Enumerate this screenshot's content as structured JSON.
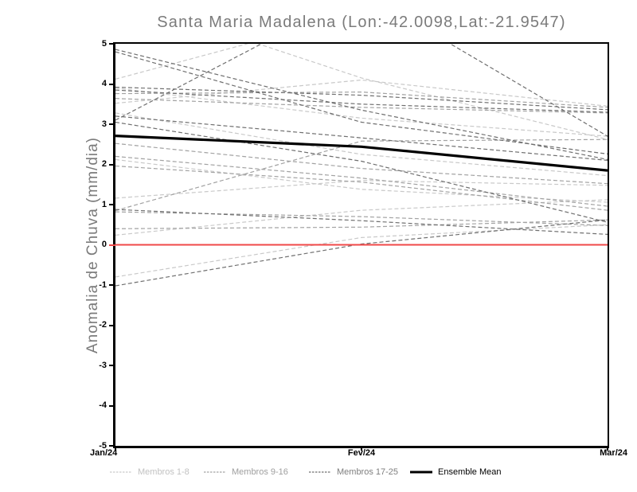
{
  "title": "Santa Maria Madalena (Lon:-42.0098,Lat:-21.9547)",
  "y_axis": {
    "label": "Anomalia de Chuva (mm/dia)",
    "ticks": [
      {
        "label": "5",
        "value": 5
      },
      {
        "label": "4",
        "value": 4
      },
      {
        "label": "3",
        "value": 3
      },
      {
        "label": "2",
        "value": 2
      },
      {
        "label": "1",
        "value": 1
      },
      {
        "label": "0",
        "value": 0
      },
      {
        "label": "-1",
        "value": -1
      },
      {
        "label": "-2",
        "value": -2
      },
      {
        "label": "-3",
        "value": -3
      },
      {
        "label": "-4",
        "value": -4
      },
      {
        "label": "-5",
        "value": -5
      }
    ]
  },
  "x_axis": {
    "ticks": [
      {
        "label": "Jan/24",
        "frac": 0,
        "align": "left"
      },
      {
        "label": "Fev/24",
        "frac": 0.5,
        "align": "center"
      },
      {
        "label": "Mar/24",
        "frac": 1,
        "align": "right"
      }
    ]
  },
  "legend": [
    {
      "label": "Membros 1-8",
      "color": "#c9c9c9",
      "text_color": "#c2c2c2",
      "style": "dashed",
      "x": 0
    },
    {
      "label": "Membros 9-16",
      "color": "#a2a2a2",
      "text_color": "#9e9e9e",
      "style": "dashed",
      "x": 118
    },
    {
      "label": "Membros 17-25",
      "color": "#6f6f6f",
      "text_color": "#7e7e7e",
      "style": "dashed",
      "x": 250
    },
    {
      "label": "Ensemble Mean",
      "color": "#000000",
      "text_color": "#000000",
      "style": "solid",
      "x": 377
    }
  ],
  "colors": {
    "zero_line": "#f04848",
    "ensemble_mean": "#000000",
    "members_1_8": "#c9c9c9",
    "members_9_16": "#a2a2a2",
    "members_17_25": "#6f6f6f",
    "title_text": "#7b7b7b",
    "axis_text": "#000000"
  },
  "chart_data": {
    "type": "line",
    "title": "Santa Maria Madalena (Lon:-42.0098,Lat:-21.9547)",
    "ylabel": "Anomalia de Chuva (mm/dia)",
    "ylim": [
      -5,
      5
    ],
    "x_ticks": [
      "Jan/24",
      "Fev/24",
      "Mar/24"
    ],
    "x_note": "x given as fraction of the Jan/24 - Mar/24 span; 0=Jan/24, 0.5=Fev/24, 1=Mar/24",
    "grid": false,
    "legend_position": "bottom",
    "zero_line": {
      "value": 0,
      "color": "#f04848"
    },
    "ensemble_mean": {
      "name": "Ensemble Mean",
      "color": "#000000",
      "points": [
        [
          0,
          2.71
        ],
        [
          0.5,
          2.44
        ],
        [
          1,
          1.85
        ]
      ]
    },
    "series": [
      {
        "name": "Membro 1",
        "group": "Membros 1-8",
        "color": "#c9c9c9",
        "points": [
          [
            0,
            4.12
          ],
          [
            0.28,
            5.04
          ],
          [
            0.5,
            4.15
          ],
          [
            1,
            2.62
          ]
        ]
      },
      {
        "name": "Membro 2",
        "group": "Membros 1-8",
        "color": "#c9c9c9",
        "points": [
          [
            0,
            3.52
          ],
          [
            0.5,
            4.1
          ],
          [
            1,
            3.45
          ]
        ]
      },
      {
        "name": "Membro 3",
        "group": "Membros 1-8",
        "color": "#c9c9c9",
        "points": [
          [
            0,
            3.9
          ],
          [
            0.5,
            3.15
          ],
          [
            1,
            2.7
          ]
        ]
      },
      {
        "name": "Membro 4",
        "group": "Membros 1-8",
        "color": "#c9c9c9",
        "points": [
          [
            0,
            3.28
          ],
          [
            0.5,
            2.25
          ],
          [
            1,
            1.72
          ]
        ]
      },
      {
        "name": "Membro 5",
        "group": "Membros 1-8",
        "color": "#c9c9c9",
        "points": [
          [
            0,
            2.12
          ],
          [
            0.5,
            1.38
          ],
          [
            1,
            1.06
          ]
        ]
      },
      {
        "name": "Membro 6",
        "group": "Membros 1-8",
        "color": "#c9c9c9",
        "points": [
          [
            0,
            1.16
          ],
          [
            0.5,
            1.6
          ],
          [
            1,
            1.48
          ]
        ]
      },
      {
        "name": "Membro 7",
        "group": "Membros 1-8",
        "color": "#c9c9c9",
        "points": [
          [
            0,
            0.24
          ],
          [
            0.5,
            0.86
          ],
          [
            1,
            1.12
          ]
        ]
      },
      {
        "name": "Membro 8",
        "group": "Membros 1-8",
        "color": "#c9c9c9",
        "points": [
          [
            0,
            -0.8
          ],
          [
            0.5,
            0.18
          ],
          [
            1,
            0.5
          ]
        ]
      },
      {
        "name": "Membro 9",
        "group": "Membros 9-16",
        "color": "#a2a2a2",
        "points": [
          [
            0,
            3.76
          ],
          [
            0.5,
            3.8
          ],
          [
            1,
            3.42
          ]
        ]
      },
      {
        "name": "Membro 10",
        "group": "Membros 9-16",
        "color": "#a2a2a2",
        "points": [
          [
            0,
            3.64
          ],
          [
            0.5,
            3.42
          ],
          [
            1,
            3.28
          ]
        ]
      },
      {
        "name": "Membro 11",
        "group": "Membros 9-16",
        "color": "#a2a2a2",
        "points": [
          [
            0,
            2.52
          ],
          [
            0.5,
            1.9
          ],
          [
            1,
            1.52
          ]
        ]
      },
      {
        "name": "Membro 12",
        "group": "Membros 9-16",
        "color": "#a2a2a2",
        "points": [
          [
            0,
            2.2
          ],
          [
            0.5,
            1.66
          ],
          [
            1,
            0.96
          ]
        ]
      },
      {
        "name": "Membro 13",
        "group": "Membros 9-16",
        "color": "#a2a2a2",
        "points": [
          [
            0,
            1.96
          ],
          [
            0.5,
            1.56
          ],
          [
            1,
            0.86
          ]
        ]
      },
      {
        "name": "Membro 14",
        "group": "Membros 9-16",
        "color": "#a2a2a2",
        "points": [
          [
            0,
            0.85
          ],
          [
            0.5,
            2.58
          ],
          [
            1,
            2.62
          ]
        ]
      },
      {
        "name": "Membro 15",
        "group": "Membros 9-16",
        "color": "#a2a2a2",
        "points": [
          [
            0,
            0.4
          ],
          [
            0.5,
            0.44
          ],
          [
            1,
            0.62
          ]
        ]
      },
      {
        "name": "Membro 16",
        "group": "Membros 9-16",
        "color": "#a2a2a2",
        "points": [
          [
            0,
            0.82
          ],
          [
            0.5,
            0.7
          ],
          [
            1,
            0.48
          ]
        ]
      },
      {
        "name": "Membro 17",
        "group": "Membros 17-25",
        "color": "#6f6f6f",
        "points": [
          [
            0,
            4.86
          ],
          [
            0.5,
            3.35
          ],
          [
            1,
            2.12
          ]
        ]
      },
      {
        "name": "Membro 18",
        "group": "Membros 17-25",
        "color": "#6f6f6f",
        "points": [
          [
            0,
            4.8
          ],
          [
            0.5,
            3.05
          ],
          [
            1,
            2.26
          ]
        ]
      },
      {
        "name": "Membro 19",
        "group": "Membros 17-25",
        "color": "#6f6f6f",
        "points": [
          [
            0,
            3.92
          ],
          [
            0.5,
            3.72
          ],
          [
            1,
            3.36
          ]
        ]
      },
      {
        "name": "Membro 20",
        "group": "Membros 17-25",
        "color": "#6f6f6f",
        "points": [
          [
            0,
            3.85
          ],
          [
            0.5,
            3.5
          ],
          [
            1,
            3.3
          ]
        ]
      },
      {
        "name": "Membro 21",
        "group": "Membros 17-25",
        "color": "#6f6f6f",
        "points": [
          [
            0,
            3.05
          ],
          [
            0.5,
            2.08
          ],
          [
            1,
            0.56
          ]
        ]
      },
      {
        "name": "Membro 22",
        "group": "Membros 17-25",
        "color": "#6f6f6f",
        "points": [
          [
            0,
            3.2
          ],
          [
            0.5,
            2.66
          ],
          [
            1,
            2.1
          ]
        ]
      },
      {
        "name": "Membro 23",
        "group": "Membros 17-25",
        "color": "#6f6f6f",
        "points": [
          [
            0,
            3.1
          ],
          [
            0.5,
            6.3
          ],
          [
            1,
            2.7
          ]
        ]
      },
      {
        "name": "Membro 24",
        "group": "Membros 17-25",
        "color": "#6f6f6f",
        "points": [
          [
            0,
            -1.02
          ],
          [
            0.5,
            0.02
          ],
          [
            1,
            0.62
          ]
        ]
      },
      {
        "name": "Membro 25",
        "group": "Membros 17-25",
        "color": "#6f6f6f",
        "points": [
          [
            0,
            0.88
          ],
          [
            0.5,
            0.6
          ],
          [
            1,
            0.26
          ]
        ]
      }
    ]
  }
}
